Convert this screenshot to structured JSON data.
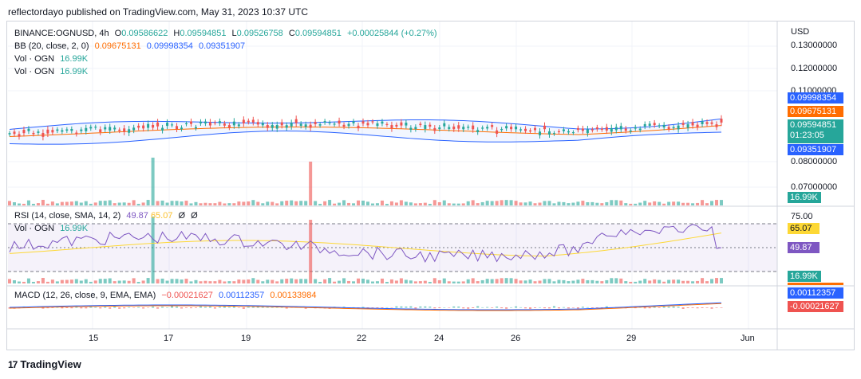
{
  "header": {
    "publisher": "reflectordayo published on TradingView.com, May 31, 2023 10:37 UTC"
  },
  "symbol_line": {
    "symbol": "BINANCE:OGNUSD, 4h",
    "o_label": "O",
    "o": "0.09586622",
    "h_label": "H",
    "h": "0.09594851",
    "l_label": "L",
    "l": "0.09526758",
    "c_label": "C",
    "c": "0.09594851",
    "change": "+0.00025844 (+0.27%)"
  },
  "bb_line": {
    "label": "BB (20, close, 2, 0)",
    "basis": "0.09675131",
    "upper": "0.09998354",
    "lower": "0.09351907"
  },
  "vol_line1": {
    "label": "Vol · OGN",
    "value": "16.99K"
  },
  "vol_line2": {
    "label": "Vol · OGN",
    "value": "16.99K"
  },
  "rsi_legend": {
    "label": "RSI (14, close, SMA, 14, 2)",
    "rsi": "49.87",
    "ma": "65.07",
    "d1": "Ø",
    "d2": "Ø"
  },
  "rsi_vol": {
    "label": "Vol · OGN",
    "value": "16.99K"
  },
  "macd_legend": {
    "label": "MACD (12, 26, close, 9, EMA, EMA)",
    "hist": "−0.00021627",
    "macd": "0.00112357",
    "signal": "0.00133984"
  },
  "price_axis": {
    "currency": "USD",
    "ticks": [
      "0.13000000",
      "0.12000000",
      "0.11000000",
      "0.08000000",
      "0.07000000"
    ]
  },
  "price_tags": {
    "upper": "0.09998354",
    "basis": "0.09675131",
    "close": "0.09594851",
    "countdown": "01:23:05",
    "lower": "0.09351907",
    "volume": "16.99K"
  },
  "rsi_axis": {
    "top": "75.00",
    "ma": "65.07",
    "rsi": "49.87",
    "vol": "16.99K"
  },
  "macd_axis": {
    "macd": "0.00112357",
    "hist": "-0.00021627"
  },
  "time_axis": [
    "15",
    "17",
    "19",
    "22",
    "24",
    "26",
    "29",
    "Jun"
  ],
  "footer": {
    "brand": "TradingView"
  },
  "colors": {
    "up": "#26a69a",
    "down": "#ef5350",
    "bb_band": "#2962ff",
    "bb_basis": "#ff6d00",
    "rsi": "#7e57c2",
    "rsi_ma": "#fdd835",
    "macd": "#2962ff",
    "signal": "#ff6d00"
  }
}
